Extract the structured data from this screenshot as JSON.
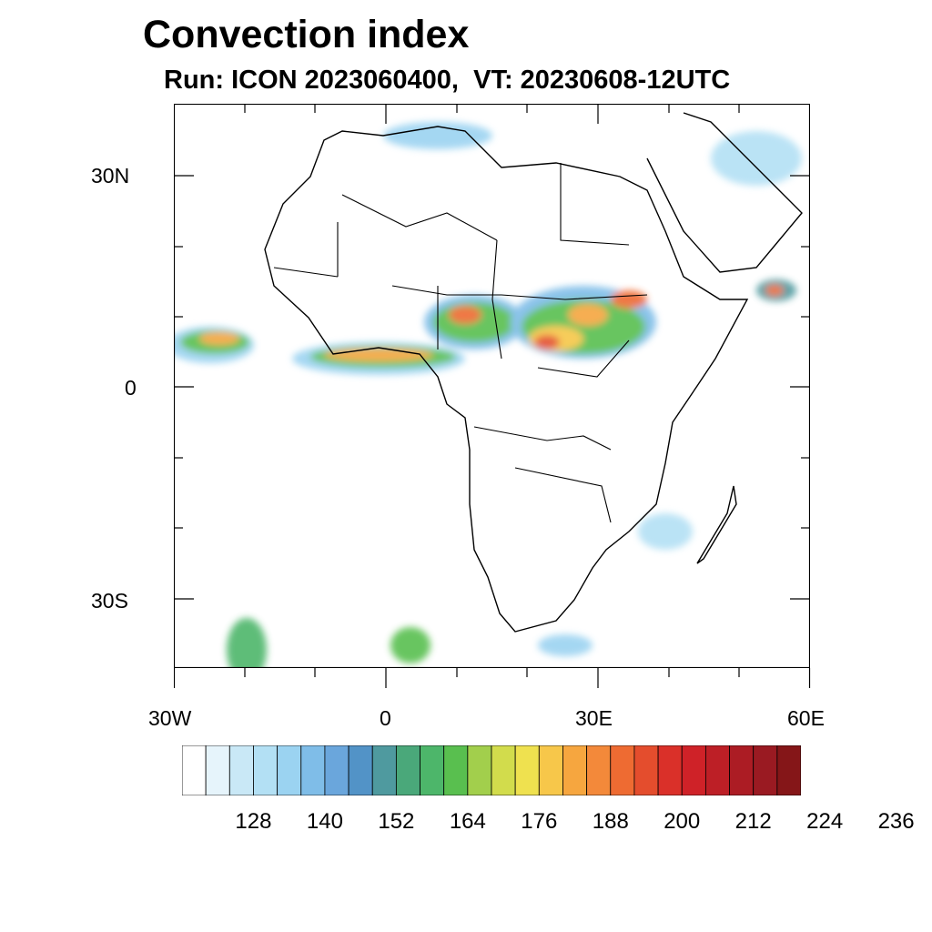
{
  "title": "Convection index",
  "subtitle": "Run: ICON 2023060400,  VT: 20230608-12UTC",
  "axes": {
    "lat_labels": [
      "30N",
      "0",
      "30S"
    ],
    "lon_labels": [
      "30W",
      "0",
      "30E",
      "60E"
    ]
  },
  "colorbar": {
    "tick_labels": [
      "128",
      "140",
      "152",
      "164",
      "176",
      "188",
      "200",
      "212",
      "224",
      "236"
    ],
    "colors": [
      "#ffffff",
      "#e6f4fb",
      "#c9e8f6",
      "#b3e0f4",
      "#9bd3f1",
      "#7fbde8",
      "#6aa6dc",
      "#5293c7",
      "#4f9a9f",
      "#4aa87a",
      "#4db66a",
      "#59bf4f",
      "#a2cf4c",
      "#d2dc4c",
      "#efe14f",
      "#f7c74a",
      "#f6a63f",
      "#f3893a",
      "#ee6b32",
      "#e44d2d",
      "#da3029",
      "#cf2228",
      "#bd1f26",
      "#ac1c24",
      "#9a1a22",
      "#851618"
    ]
  },
  "colors": {
    "frame": "#000000",
    "coast": "#000000",
    "ocean": "#ffffff"
  }
}
